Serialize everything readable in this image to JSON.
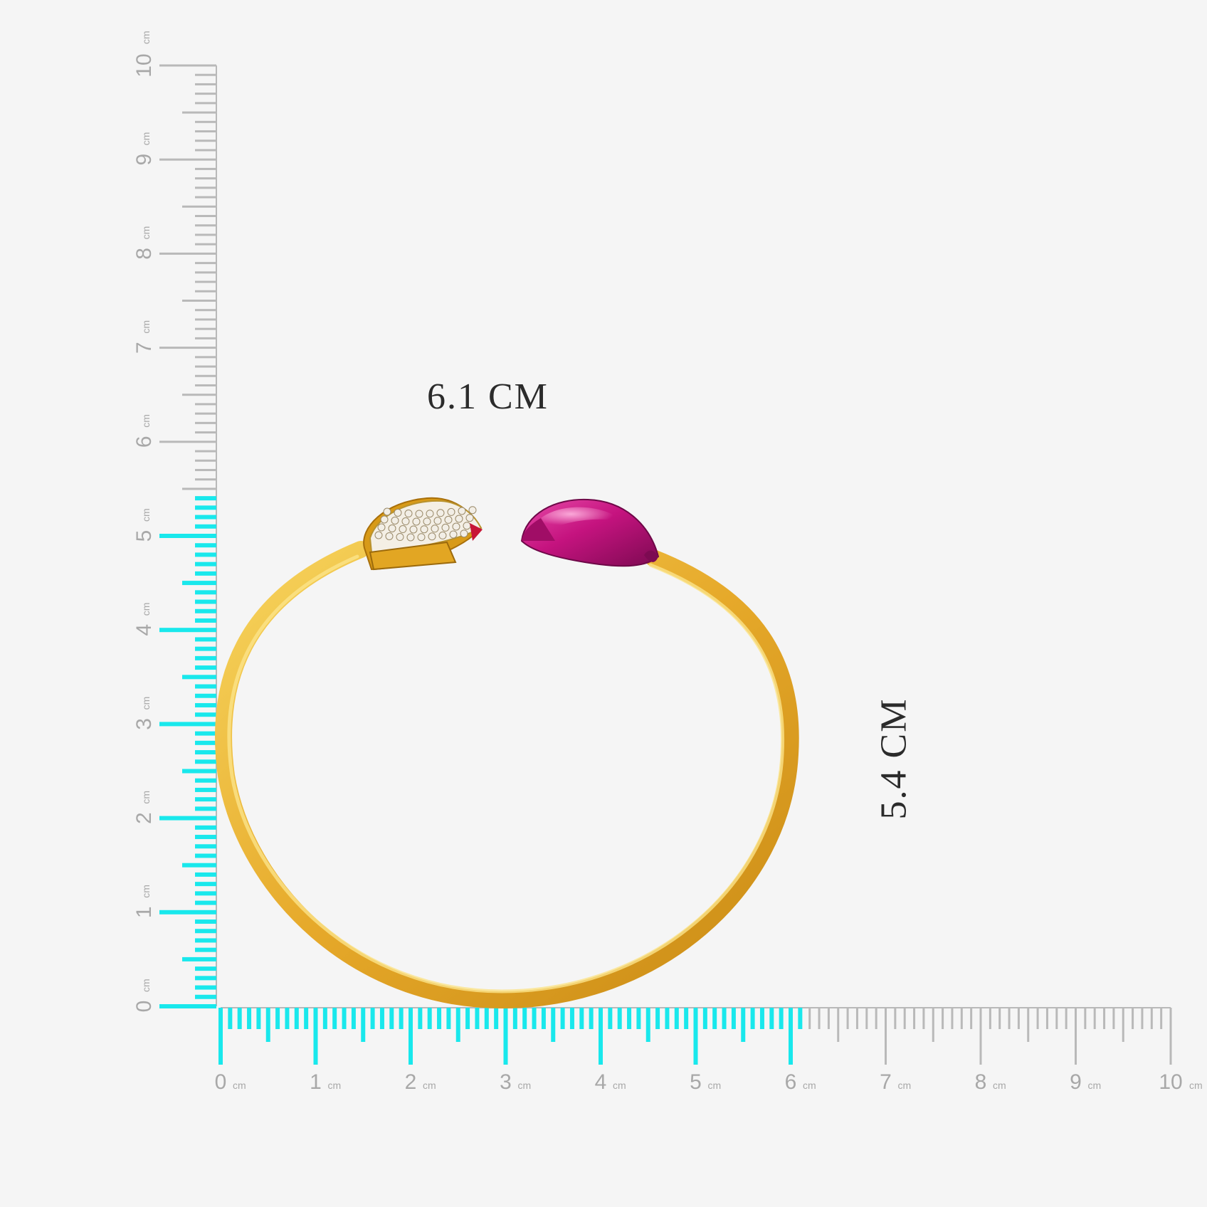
{
  "dimensions": {
    "width_label": "6.1 CM",
    "height_label": "5.4 CM",
    "width_cm": 6.1,
    "height_cm": 5.4
  },
  "ruler": {
    "unit": "cm",
    "max_cm": 10,
    "ticks_per_cm": 10,
    "highlight_color": "#19e8ec",
    "base_color": "#b9b9b9",
    "label_color": "#a8a8a8",
    "number_labels": [
      "0",
      "1",
      "2",
      "3",
      "4",
      "5",
      "6",
      "7",
      "8",
      "9",
      "10"
    ]
  },
  "product": {
    "band_color": "#e6a92a",
    "band_highlight_color": "#f6cf55",
    "gem_color": "#c5137f",
    "stones_color": "#f2eee6"
  }
}
